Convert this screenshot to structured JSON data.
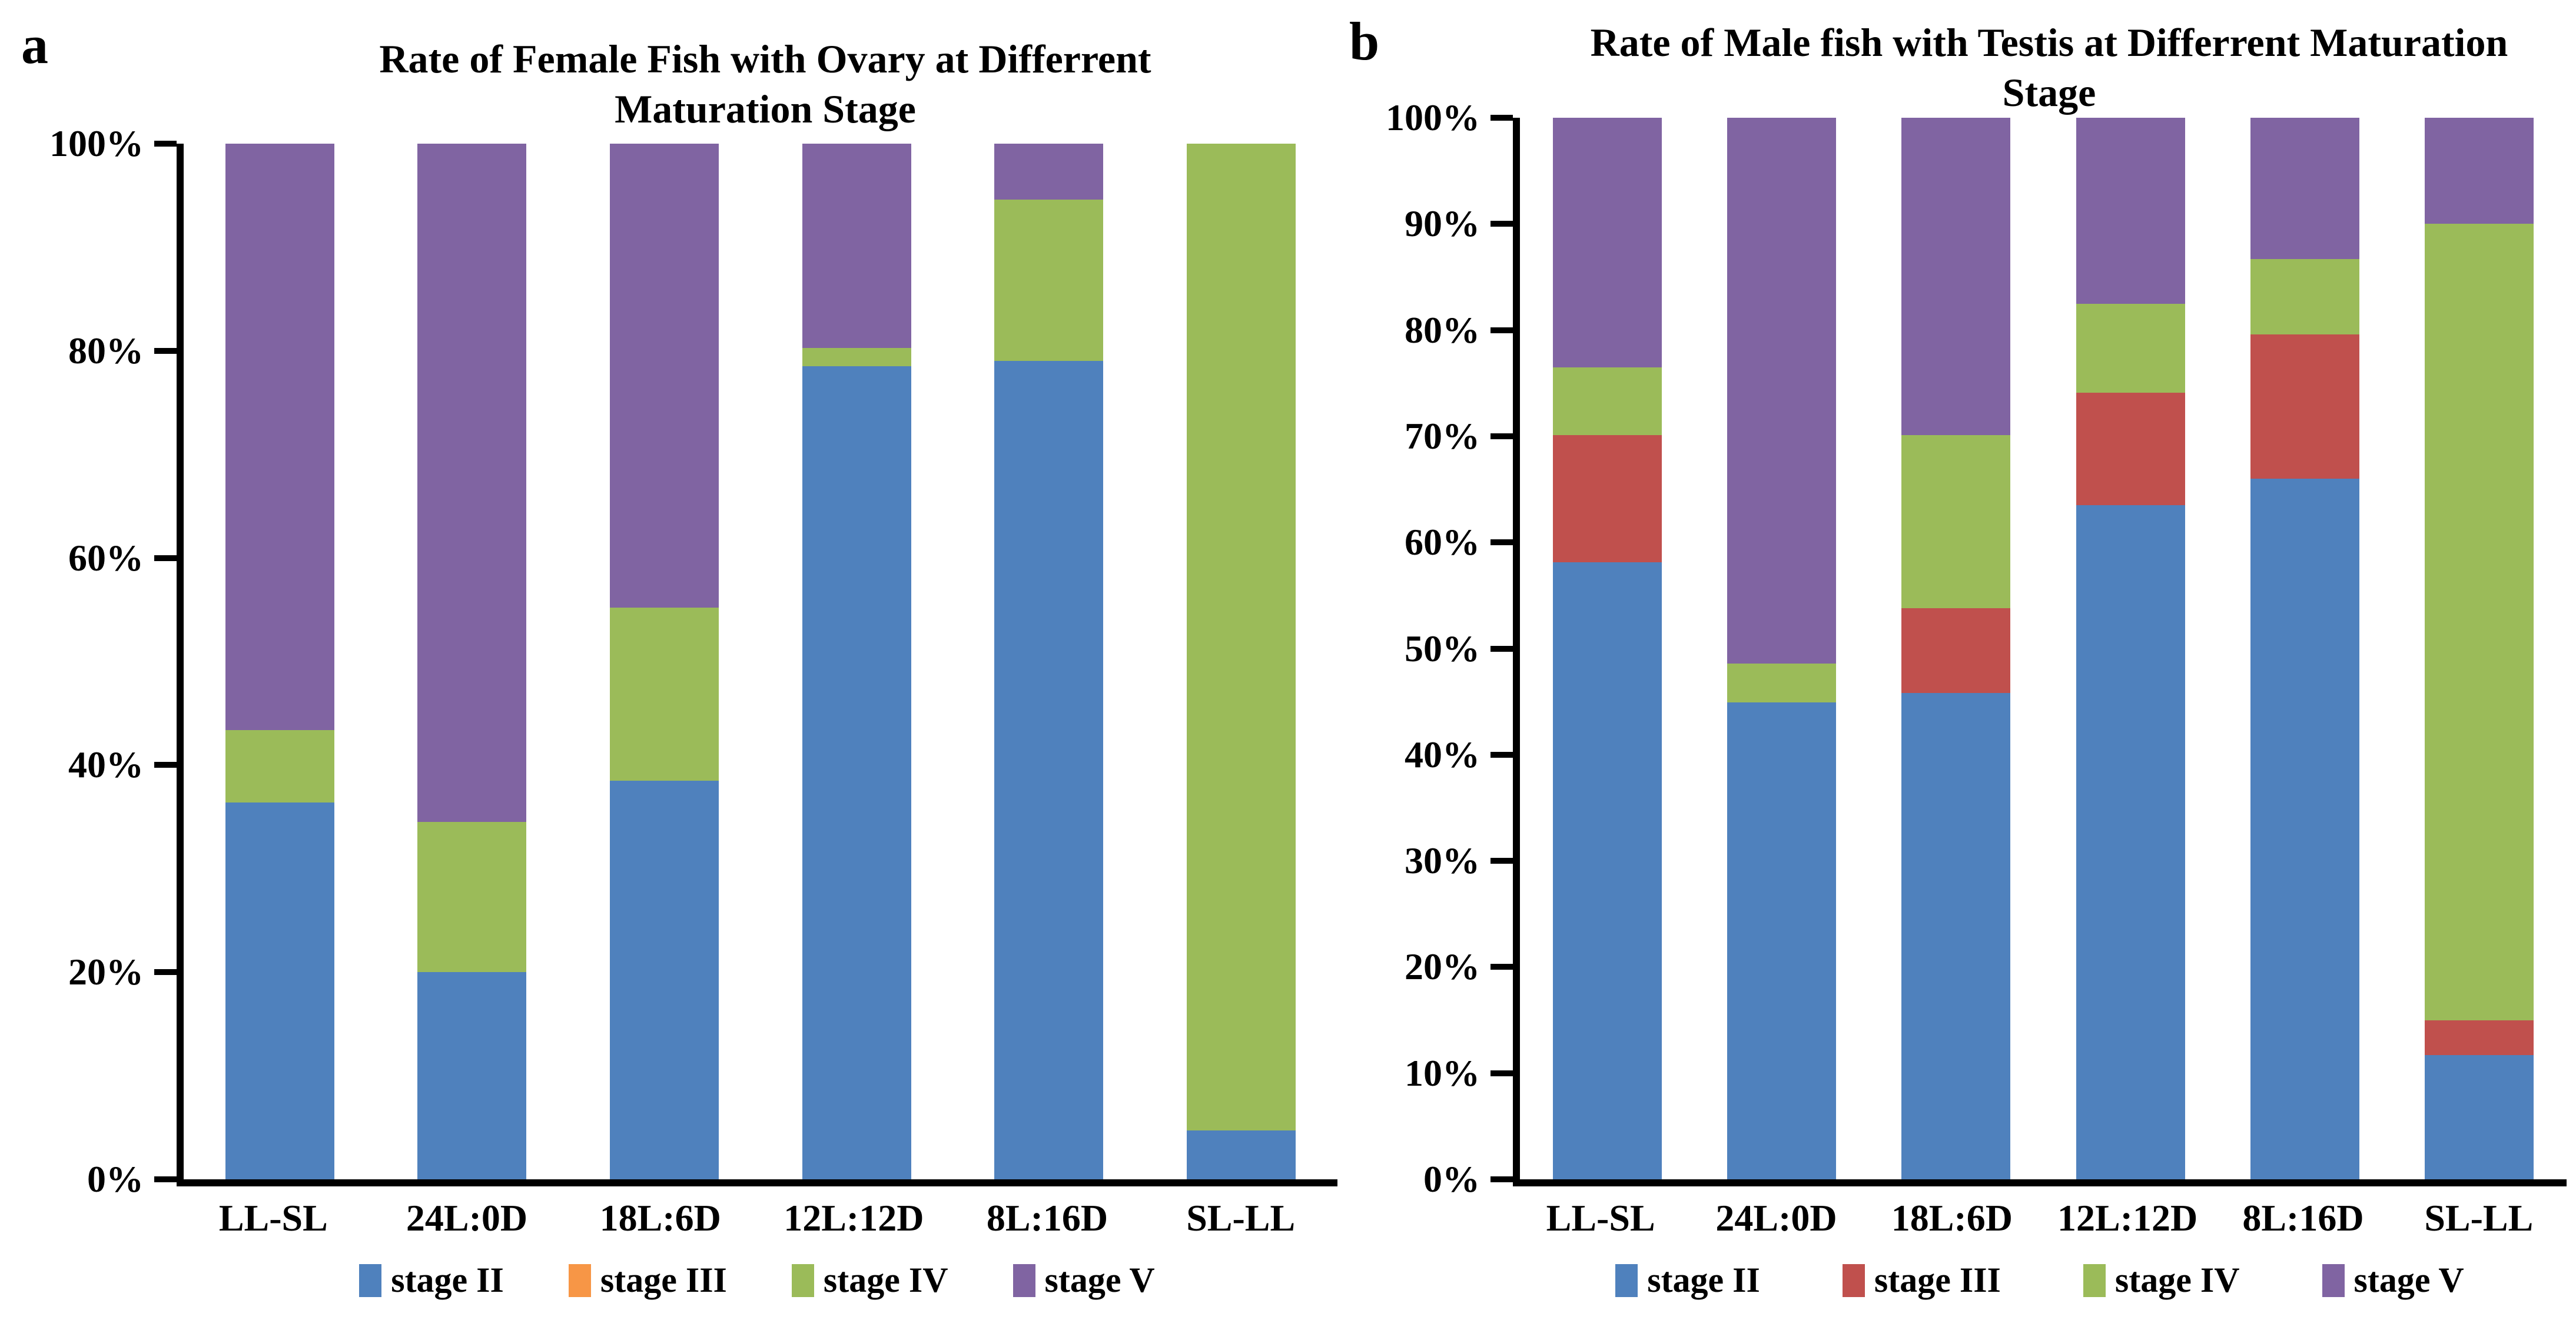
{
  "figure": {
    "background": "#ffffff",
    "axis_color": "#000000",
    "palette": {
      "stage_ii_blue": "#4F81BD",
      "stage_iii_orange": "#F79646",
      "stage_iii_red": "#C0504D",
      "stage_iv_green": "#9BBB59",
      "stage_v_purple": "#8064A2"
    }
  },
  "chart_data": [
    {
      "panel_letter": "a",
      "type": "bar",
      "stacked": true,
      "units": "percent",
      "title": "Rate of Female Fish with Ovary at Differrent Maturation Stage",
      "categories": [
        "LL-SL",
        "24L:0D",
        "18L:6D",
        "12L:12D",
        "8L:16D",
        "SL-LL"
      ],
      "series": [
        {
          "name": "stage II",
          "color": "#4F81BD",
          "values": [
            36.4,
            20.0,
            38.5,
            78.5,
            79.0,
            4.7
          ]
        },
        {
          "name": "stage III",
          "color": "#F79646",
          "values": [
            0,
            0,
            0,
            0,
            0,
            0
          ]
        },
        {
          "name": "stage IV",
          "color": "#9BBB59",
          "values": [
            7.0,
            14.5,
            16.7,
            1.8,
            15.6,
            95.3
          ]
        },
        {
          "name": "stage V",
          "color": "#8064A2",
          "values": [
            56.6,
            65.5,
            44.8,
            19.7,
            5.4,
            0
          ]
        }
      ],
      "y_ticks": [
        "0%",
        "20%",
        "40%",
        "60%",
        "80%",
        "100%"
      ],
      "y_tick_values": [
        0,
        20,
        40,
        60,
        80,
        100
      ],
      "ylim": [
        0,
        100
      ],
      "grid": false,
      "legend_position": "bottom"
    },
    {
      "panel_letter": "b",
      "type": "bar",
      "stacked": true,
      "units": "percent",
      "title": "Rate of Male fish with Testis at Differrent Maturation Stage",
      "categories": [
        "LL-SL",
        "24L:0D",
        "18L:6D",
        "12L:12D",
        "8L:16D",
        "SL-LL"
      ],
      "series": [
        {
          "name": "stage II",
          "color": "#4F81BD",
          "values": [
            58.1,
            44.9,
            45.8,
            63.5,
            66.0,
            11.7
          ]
        },
        {
          "name": "stage III",
          "color": "#C0504D",
          "values": [
            12.0,
            0,
            8.0,
            10.6,
            13.6,
            3.3
          ]
        },
        {
          "name": "stage IV",
          "color": "#9BBB59",
          "values": [
            6.4,
            3.7,
            16.3,
            8.4,
            7.1,
            75.0
          ]
        },
        {
          "name": "stage V",
          "color": "#8064A2",
          "values": [
            23.5,
            51.4,
            29.9,
            17.5,
            13.3,
            10.0
          ]
        }
      ],
      "y_ticks": [
        "0%",
        "10%",
        "20%",
        "30%",
        "40%",
        "50%",
        "60%",
        "70%",
        "80%",
        "90%",
        "100%"
      ],
      "y_tick_values": [
        0,
        10,
        20,
        30,
        40,
        50,
        60,
        70,
        80,
        90,
        100
      ],
      "ylim": [
        0,
        100
      ],
      "grid": false,
      "legend_position": "bottom"
    }
  ]
}
